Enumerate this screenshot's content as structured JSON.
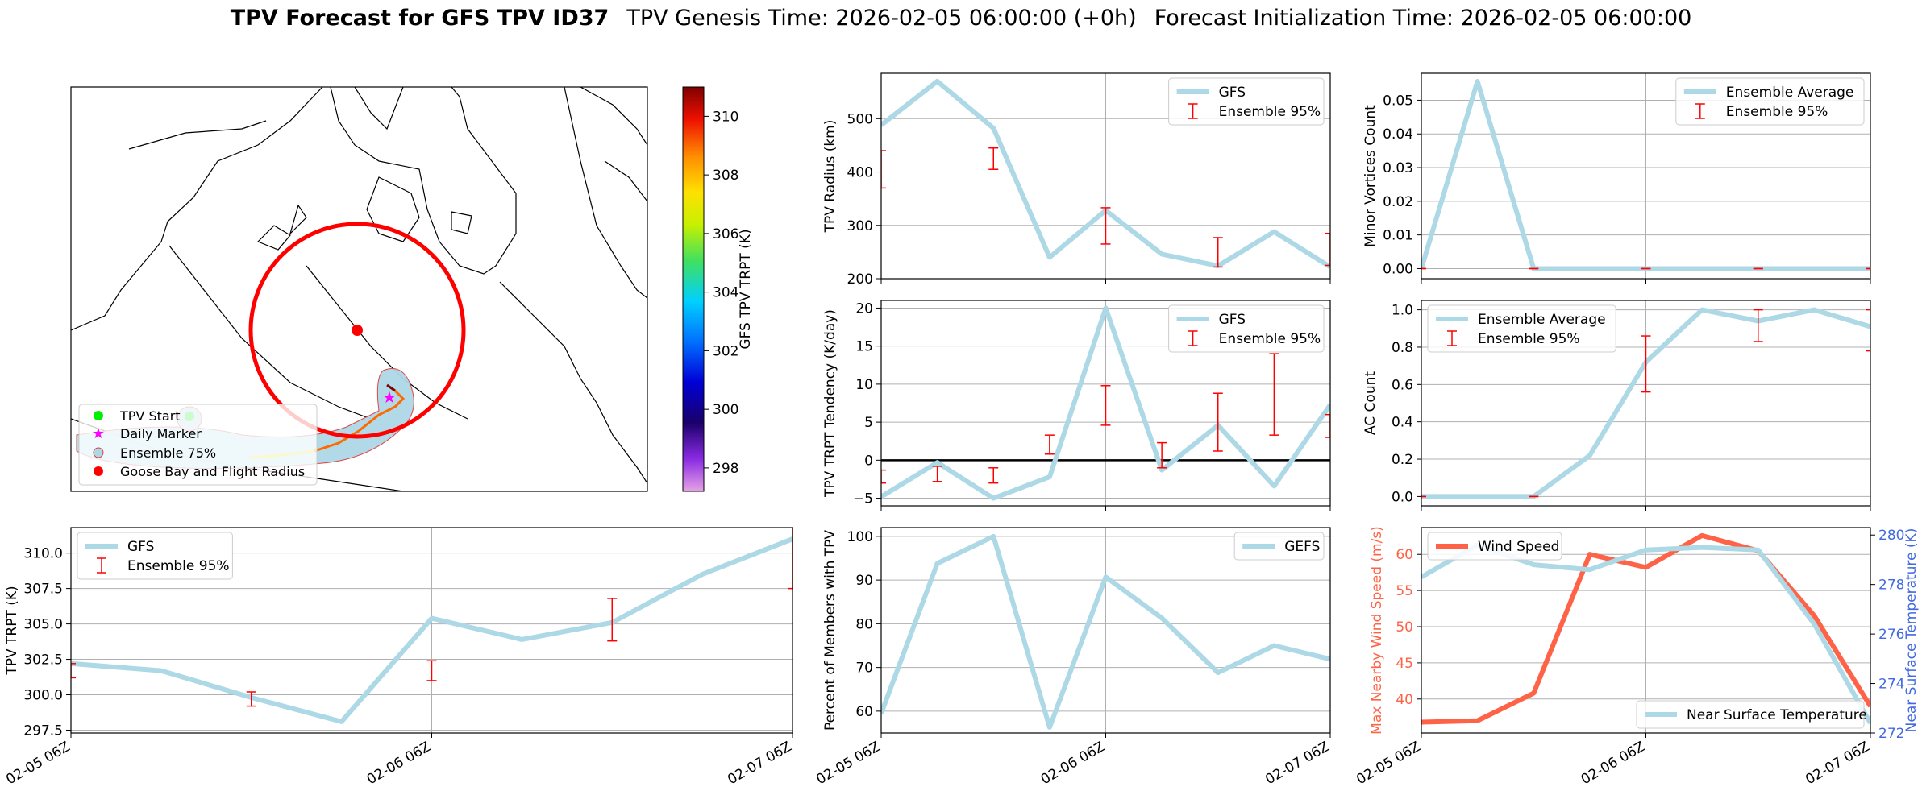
{
  "title": {
    "bold": "TPV Forecast for GFS TPV ID37",
    "genesis": "TPV Genesis Time: 2026-02-05 06:00:00 (+0h)",
    "init": "Forecast Initialization Time: 2026-02-05 06:00:00"
  },
  "colors": {
    "gfs_line": "#add8e6",
    "errorbar": "#ff0000",
    "wind": "#ff6347",
    "temp_axis": "#4169e1",
    "grid": "#b0b0b0"
  },
  "time_ticks": [
    "02-05 06Z",
    "02-06 06Z",
    "02-07 06Z"
  ],
  "map": {
    "colorbar_label": "GFS TPV TRPT (K)",
    "colorbar_ticks": [
      "298",
      "300",
      "302",
      "304",
      "306",
      "308",
      "310"
    ],
    "colorbar_range": [
      297.2,
      311.0
    ],
    "legend": [
      "TPV Start",
      "Daily Marker",
      "Ensemble 75%",
      "Goose Bay and Flight Radius"
    ]
  },
  "chart_data": [
    {
      "id": "radius",
      "type": "line",
      "ylabel": "TPV Radius (km)",
      "ylim": [
        200,
        585
      ],
      "yticks": [
        "200",
        "300",
        "400",
        "500"
      ],
      "ytick_values": [
        200,
        300,
        400,
        500
      ],
      "x": [
        0,
        6,
        12,
        18,
        24,
        30,
        36,
        42,
        48
      ],
      "series": [
        {
          "name": "GFS",
          "values": [
            488,
            570,
            482,
            240,
            328,
            246,
            224,
            288,
            222
          ]
        }
      ],
      "errorbars": [
        {
          "x": 0,
          "low": 370,
          "high": 440
        },
        {
          "x": 12,
          "low": 405,
          "high": 445
        },
        {
          "x": 24,
          "low": 265,
          "high": 333
        },
        {
          "x": 36,
          "low": 222,
          "high": 277
        },
        {
          "x": 48,
          "low": 225,
          "high": 285
        }
      ],
      "legend": [
        "GFS",
        "Ensemble 95%"
      ],
      "legend_pos": "upper right"
    },
    {
      "id": "minor",
      "type": "line",
      "ylabel": "Minor Vortices Count",
      "ylim": [
        -0.003,
        0.058
      ],
      "yticks": [
        "0.00",
        "0.01",
        "0.02",
        "0.03",
        "0.04",
        "0.05"
      ],
      "ytick_values": [
        0,
        0.01,
        0.02,
        0.03,
        0.04,
        0.05
      ],
      "x": [
        0,
        6,
        12,
        18,
        24,
        30,
        36,
        42,
        48
      ],
      "series": [
        {
          "name": "Ensemble Average",
          "values": [
            0,
            0.0556,
            0,
            0,
            0,
            0,
            0,
            0,
            0
          ]
        }
      ],
      "errorbars": [
        {
          "x": 0,
          "low": 0,
          "high": 0
        },
        {
          "x": 12,
          "low": 0,
          "high": 0
        },
        {
          "x": 24,
          "low": 0,
          "high": 0
        },
        {
          "x": 36,
          "low": 0,
          "high": 0
        },
        {
          "x": 48,
          "low": 0,
          "high": 0
        }
      ],
      "legend": [
        "Ensemble Average",
        "Ensemble 95%"
      ],
      "legend_pos": "upper right"
    },
    {
      "id": "tendency",
      "type": "line",
      "ylabel": "TPV TRPT Tendency (K/day)",
      "ylim": [
        -6,
        21
      ],
      "yticks": [
        "−5",
        "0",
        "5",
        "10",
        "15",
        "20"
      ],
      "ytick_values": [
        -5,
        0,
        5,
        10,
        15,
        20
      ],
      "zero_line": true,
      "x": [
        0,
        6,
        12,
        18,
        24,
        30,
        36,
        42,
        48
      ],
      "series": [
        {
          "name": "GFS",
          "values": [
            -4.8,
            -0.3,
            -5,
            -2.2,
            20,
            -1.3,
            4.6,
            -3.4,
            7.3
          ]
        }
      ],
      "errorbars": [
        {
          "x": 0,
          "low": -3,
          "high": -1.3
        },
        {
          "x": 6,
          "low": -2.8,
          "high": -0.8
        },
        {
          "x": 12,
          "low": -3,
          "high": -1
        },
        {
          "x": 18,
          "low": 0.8,
          "high": 3.3
        },
        {
          "x": 24,
          "low": 4.6,
          "high": 9.8
        },
        {
          "x": 30,
          "low": -1,
          "high": 2.3
        },
        {
          "x": 36,
          "low": 1.2,
          "high": 8.8
        },
        {
          "x": 42,
          "low": 3.3,
          "high": 14
        },
        {
          "x": 48,
          "low": 3,
          "high": 6
        }
      ],
      "legend": [
        "GFS",
        "Ensemble 95%"
      ],
      "legend_pos": "upper right"
    },
    {
      "id": "ac",
      "type": "line",
      "ylabel": "AC Count",
      "ylim": [
        -0.05,
        1.05
      ],
      "yticks": [
        "0.0",
        "0.2",
        "0.4",
        "0.6",
        "0.8",
        "1.0"
      ],
      "ytick_values": [
        0,
        0.2,
        0.4,
        0.6,
        0.8,
        1.0
      ],
      "x": [
        0,
        6,
        12,
        18,
        24,
        30,
        36,
        42,
        48
      ],
      "series": [
        {
          "name": "Ensemble Average",
          "values": [
            0,
            0,
            0,
            0.22,
            0.72,
            1.0,
            0.94,
            1.0,
            0.91
          ]
        }
      ],
      "errorbars": [
        {
          "x": 0,
          "low": 0,
          "high": 0
        },
        {
          "x": 12,
          "low": 0,
          "high": 0
        },
        {
          "x": 24,
          "low": 0.56,
          "high": 0.86
        },
        {
          "x": 36,
          "low": 0.83,
          "high": 1.0
        },
        {
          "x": 48,
          "low": 0.78,
          "high": 1.0
        }
      ],
      "legend": [
        "Ensemble Average",
        "Ensemble 95%"
      ],
      "legend_pos": "upper left"
    },
    {
      "id": "trpt",
      "type": "line",
      "ylabel": "TPV TRPT (K)",
      "ylim": [
        297.3,
        311.8
      ],
      "yticks": [
        "297.5",
        "300.0",
        "302.5",
        "305.0",
        "307.5",
        "310.0"
      ],
      "ytick_values": [
        297.5,
        300,
        302.5,
        305,
        307.5,
        310
      ],
      "x": [
        0,
        6,
        12,
        18,
        24,
        30,
        36,
        42,
        48
      ],
      "series": [
        {
          "name": "GFS",
          "values": [
            302.2,
            301.7,
            299.8,
            298.1,
            305.4,
            303.9,
            305.1,
            308.5,
            311.0
          ]
        }
      ],
      "errorbars": [
        {
          "x": 0,
          "low": 301.2,
          "high": 302.2
        },
        {
          "x": 12,
          "low": 299.2,
          "high": 300.2
        },
        {
          "x": 24,
          "low": 301.0,
          "high": 302.4
        },
        {
          "x": 36,
          "low": 303.8,
          "high": 306.8
        },
        {
          "x": 48,
          "low": 307.5,
          "high": 311.8
        }
      ],
      "legend": [
        "GFS",
        "Ensemble 95%"
      ],
      "legend_pos": "upper left"
    },
    {
      "id": "members",
      "type": "line",
      "ylabel": "Percent of Members with TPV",
      "ylim": [
        55,
        102
      ],
      "yticks": [
        "60",
        "70",
        "80",
        "90",
        "100"
      ],
      "ytick_values": [
        60,
        70,
        80,
        90,
        100
      ],
      "x": [
        0,
        6,
        12,
        18,
        24,
        30,
        36,
        42,
        48
      ],
      "series": [
        {
          "name": "GEFS",
          "values": [
            59.5,
            93.8,
            100,
            56.3,
            90.7,
            81.3,
            68.8,
            75,
            71.9
          ]
        }
      ],
      "errorbars": [],
      "legend": [
        "GEFS"
      ],
      "legend_pos": "upper right"
    },
    {
      "id": "wind",
      "type": "line",
      "ylabel": "Max Nearby Wind Speed (m/s)",
      "ylim": [
        35.3,
        63.7
      ],
      "yticks": [
        "40",
        "45",
        "50",
        "55",
        "60"
      ],
      "ytick_values": [
        40,
        45,
        50,
        55,
        60
      ],
      "y2label": "Near Surface Temperature (K)",
      "y2lim": [
        272,
        280.3
      ],
      "y2ticks": [
        "272",
        "274",
        "276",
        "278",
        "280"
      ],
      "y2tick_values": [
        272,
        274,
        276,
        278,
        280
      ],
      "x": [
        0,
        6,
        12,
        18,
        24,
        30,
        36,
        42,
        48
      ],
      "series": [
        {
          "name": "Wind Speed",
          "axis": "left",
          "values": [
            36.8,
            37.0,
            40.8,
            60.0,
            58.2,
            62.6,
            60.5,
            51.5,
            39.0
          ]
        },
        {
          "name": "Near Surface Temperature",
          "axis": "right",
          "values": [
            278.3,
            279.6,
            278.8,
            278.6,
            279.4,
            279.5,
            279.4,
            276.4,
            272.4
          ]
        }
      ],
      "errorbars": [],
      "legend": [
        "Wind Speed",
        "Near Surface Temperature"
      ]
    }
  ]
}
